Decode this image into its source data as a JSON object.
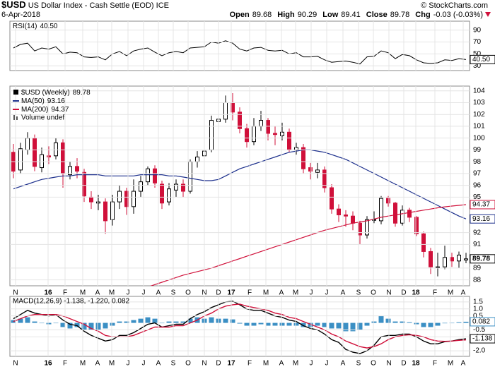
{
  "header": {
    "symbol": "$USD",
    "name": "US Dollar Index - Cash Settle (EOD) ICE",
    "credit": "© StockCharts.com",
    "date": "6-Apr-2018",
    "quote": [
      {
        "label": "Open",
        "value": 89.68
      },
      {
        "label": "High",
        "value": 90.29
      },
      {
        "label": "Low",
        "value": 89.41
      },
      {
        "label": "Close",
        "value": 89.78
      },
      {
        "label": "Chg",
        "value": "-0.03 (-0.03%)"
      }
    ]
  },
  "chart_data": [
    {
      "type": "line",
      "series": [
        {
          "name": "RSI(14)",
          "color": "#000000",
          "values": [
            60,
            66,
            68,
            55,
            60,
            58,
            62,
            50,
            53,
            52,
            45,
            44,
            45,
            40,
            50,
            54,
            47,
            55,
            58,
            60,
            53,
            47,
            52,
            54,
            52,
            60,
            61,
            62,
            70,
            68,
            72,
            68,
            58,
            55,
            60,
            61,
            56,
            55,
            56,
            50,
            52,
            45,
            45,
            46,
            40,
            36,
            37,
            38,
            36,
            33,
            45,
            46,
            55,
            52,
            42,
            49,
            47,
            40,
            35,
            34,
            35,
            40,
            39,
            42,
            40.5
          ],
          "value_labels": [
            null,
            null,
            null,
            null,
            null,
            null,
            null,
            null,
            null,
            null,
            null,
            null,
            null,
            null,
            null,
            null,
            null,
            null,
            null,
            null,
            null,
            null,
            null,
            null,
            null,
            null,
            null,
            null,
            null,
            null,
            null,
            null,
            null,
            null,
            null,
            null,
            null,
            null,
            null,
            null,
            null,
            null,
            null,
            null,
            null,
            null,
            null,
            null,
            null,
            null,
            null,
            null,
            null,
            null,
            null,
            null,
            null,
            null,
            null,
            null,
            null,
            null,
            null,
            null,
            "40.50"
          ]
        }
      ],
      "ylim": [
        22,
        105
      ],
      "yticks": [
        30,
        50,
        70,
        90
      ]
    },
    {
      "type": "candlestick",
      "name": "$USD (Weekly)",
      "up_color": "#000000",
      "down_color": "#d0103a",
      "open": [
        98.8,
        97.3,
        99.0,
        100.0,
        97.5,
        98.5,
        98.5,
        99.6,
        96.9,
        97.6,
        97.1,
        95.0,
        94.5,
        94.6,
        93.1,
        94.6,
        95.5,
        94.2,
        95.5,
        96.3,
        97.4,
        96.1,
        94.6,
        95.6,
        96.1,
        95.5,
        98.0,
        98.5,
        99.0,
        101.4,
        101.6,
        103.0,
        102.2,
        100.8,
        99.7,
        101.0,
        101.5,
        100.4,
        100.2,
        100.5,
        99.0,
        99.2,
        97.5,
        97.1,
        97.3,
        95.8,
        94.0,
        93.5,
        93.4,
        92.8,
        91.8,
        93.1,
        93.0,
        94.9,
        94.5,
        92.8,
        93.9,
        93.3,
        91.9,
        90.4,
        89.1,
        89.1,
        89.9,
        89.6,
        89.68
      ],
      "high": [
        99.5,
        99.6,
        100.5,
        100.3,
        99.2,
        99.3,
        100.0,
        99.9,
        98.0,
        98.3,
        97.4,
        95.5,
        95.2,
        94.9,
        95.2,
        96.0,
        95.8,
        96.5,
        96.8,
        97.6,
        97.7,
        96.4,
        96.2,
        96.5,
        96.5,
        98.2,
        98.9,
        99.3,
        101.9,
        102.3,
        103.6,
        103.8,
        102.6,
        101.2,
        101.7,
        102.3,
        101.7,
        101.0,
        101.3,
        100.8,
        99.6,
        99.5,
        97.9,
        97.9,
        97.6,
        96.1,
        94.4,
        93.9,
        93.8,
        93.0,
        93.4,
        93.8,
        95.1,
        95.1,
        94.6,
        94.3,
        94.1,
        93.4,
        92.1,
        90.7,
        90.3,
        90.9,
        90.3,
        90.4,
        90.29
      ],
      "low": [
        96.6,
        97.0,
        98.6,
        97.2,
        97.1,
        97.8,
        98.2,
        95.8,
        96.5,
        96.6,
        94.6,
        94.0,
        93.9,
        91.9,
        92.6,
        94.0,
        93.5,
        93.6,
        95.0,
        96.0,
        95.8,
        94.0,
        94.3,
        95.0,
        95.0,
        95.3,
        97.5,
        97.3,
        98.8,
        100.5,
        101.3,
        101.5,
        100.4,
        99.2,
        99.4,
        100.6,
        99.8,
        99.4,
        99.8,
        98.8,
        98.6,
        97.0,
        96.5,
        96.6,
        95.4,
        93.6,
        92.9,
        92.5,
        92.2,
        91.0,
        91.5,
        92.8,
        92.7,
        94.2,
        92.5,
        92.6,
        92.9,
        91.7,
        89.9,
        88.5,
        88.3,
        88.9,
        89.1,
        89.0,
        89.41
      ],
      "close": [
        97.2,
        99.1,
        100.0,
        97.6,
        98.6,
        98.4,
        99.6,
        97.0,
        97.6,
        97.2,
        95.1,
        94.6,
        94.6,
        93.0,
        94.6,
        95.5,
        94.2,
        95.5,
        96.3,
        97.4,
        96.2,
        94.5,
        95.7,
        96.1,
        95.5,
        98.0,
        98.4,
        98.9,
        101.5,
        101.6,
        103.0,
        102.2,
        100.8,
        99.7,
        101.0,
        101.5,
        100.4,
        100.3,
        100.5,
        99.0,
        99.2,
        97.4,
        97.2,
        97.3,
        95.8,
        94.0,
        93.5,
        93.4,
        92.8,
        91.8,
        93.1,
        93.1,
        94.9,
        94.5,
        92.8,
        93.9,
        93.3,
        91.9,
        90.4,
        89.1,
        89.1,
        89.9,
        89.6,
        90.1,
        89.78
      ],
      "overlays": [
        {
          "name": "MA(50)",
          "color": "#1c2f8c",
          "values": [
            95.7,
            95.9,
            96.1,
            96.3,
            96.5,
            96.6,
            96.7,
            96.8,
            96.8,
            96.9,
            96.9,
            96.9,
            96.9,
            96.8,
            96.8,
            96.8,
            96.8,
            96.8,
            96.9,
            96.9,
            96.9,
            96.9,
            96.8,
            96.8,
            96.7,
            96.6,
            96.5,
            96.4,
            96.4,
            96.5,
            96.8,
            97.1,
            97.4,
            97.6,
            97.8,
            98.0,
            98.2,
            98.4,
            98.6,
            98.8,
            98.9,
            99.0,
            99.0,
            98.9,
            98.8,
            98.6,
            98.4,
            98.2,
            97.9,
            97.6,
            97.3,
            97.0,
            96.7,
            96.4,
            96.1,
            95.8,
            95.5,
            95.2,
            94.9,
            94.6,
            94.3,
            94.0,
            93.7,
            93.4,
            93.16
          ]
        },
        {
          "name": "MA(200)",
          "color": "#d0103a",
          "values": [
            null,
            null,
            null,
            null,
            null,
            null,
            null,
            null,
            null,
            null,
            null,
            null,
            null,
            null,
            null,
            null,
            null,
            null,
            null,
            87.4,
            87.6,
            87.8,
            88.0,
            88.2,
            88.4,
            88.55,
            88.7,
            88.85,
            89.0,
            89.2,
            89.4,
            89.6,
            89.8,
            90.0,
            90.2,
            90.4,
            90.6,
            90.8,
            91.0,
            91.2,
            91.4,
            91.6,
            91.8,
            92.0,
            92.2,
            92.35,
            92.5,
            92.65,
            92.8,
            92.9,
            93.0,
            93.15,
            93.3,
            93.4,
            93.5,
            93.6,
            93.7,
            93.8,
            93.9,
            94.0,
            94.1,
            94.18,
            94.25,
            94.31,
            94.37
          ]
        }
      ],
      "volume_label": "Volume undef",
      "ylim": [
        87.5,
        104.4
      ],
      "yticks": [
        88,
        89,
        91,
        92,
        95,
        96,
        97,
        98,
        99,
        100,
        101,
        102,
        103,
        104
      ],
      "xlim": [
        -0.5,
        64.5
      ],
      "xticks": [
        {
          "value": 0.3,
          "label": "N"
        },
        {
          "value": 4.9,
          "label": "16"
        },
        {
          "value": 7.3,
          "label": "F"
        },
        {
          "value": 9.8,
          "label": "M"
        },
        {
          "value": 11.9,
          "label": "A"
        },
        {
          "value": 13.9,
          "label": "M"
        },
        {
          "value": 16.2,
          "label": "J"
        },
        {
          "value": 18.4,
          "label": "J"
        },
        {
          "value": 20.5,
          "label": "A"
        },
        {
          "value": 22.6,
          "label": "S"
        },
        {
          "value": 24.7,
          "label": "O"
        },
        {
          "value": 27.0,
          "label": "N"
        },
        {
          "value": 29.0,
          "label": "D"
        },
        {
          "value": 30.8,
          "label": "17"
        },
        {
          "value": 33.4,
          "label": "F"
        },
        {
          "value": 35.7,
          "label": "M"
        },
        {
          "value": 37.9,
          "label": "A"
        },
        {
          "value": 39.9,
          "label": "M"
        },
        {
          "value": 42.1,
          "label": "J"
        },
        {
          "value": 44.3,
          "label": "J"
        },
        {
          "value": 46.6,
          "label": "A"
        },
        {
          "value": 48.8,
          "label": "S"
        },
        {
          "value": 50.9,
          "label": "O"
        },
        {
          "value": 53.1,
          "label": "N"
        },
        {
          "value": 55.2,
          "label": "D"
        },
        {
          "value": 56.9,
          "label": "18"
        },
        {
          "value": 59.6,
          "label": "F"
        },
        {
          "value": 61.8,
          "label": "M"
        },
        {
          "value": 63.6,
          "label": "A"
        }
      ]
    },
    {
      "type": "macd",
      "label": "MACD(12,26,9) -1.138, -1.220, 0.082",
      "series": [
        {
          "color": "#000000",
          "values": [
            0.3,
            0.6,
            0.9,
            0.7,
            0.6,
            0.5,
            0.6,
            0.2,
            -0.1,
            -0.2,
            -0.6,
            -0.9,
            -1.1,
            -1.3,
            -1.2,
            -0.9,
            -0.9,
            -0.7,
            -0.4,
            -0.1,
            0.0,
            -0.3,
            -0.2,
            -0.1,
            -0.1,
            0.3,
            0.6,
            0.8,
            1.1,
            1.3,
            1.5,
            1.55,
            1.3,
            1.0,
            0.9,
            0.9,
            0.7,
            0.5,
            0.4,
            0.2,
            0.1,
            -0.2,
            -0.4,
            -0.5,
            -0.8,
            -1.2,
            -1.4,
            -1.9,
            -2.1,
            -2.2,
            -2.0,
            -1.6,
            -1.0,
            -0.9,
            -0.9,
            -0.8,
            -0.8,
            -1.0,
            -1.3,
            -1.5,
            -1.5,
            -1.35,
            -1.3,
            -1.2,
            -1.138
          ]
        },
        {
          "color": "#d0103a",
          "values": [
            0.1,
            0.3,
            0.5,
            0.6,
            0.6,
            0.6,
            0.6,
            0.5,
            0.3,
            0.1,
            -0.1,
            -0.4,
            -0.6,
            -0.9,
            -1.0,
            -1.0,
            -1.0,
            -0.9,
            -0.7,
            -0.5,
            -0.3,
            -0.3,
            -0.3,
            -0.2,
            -0.2,
            0.0,
            0.2,
            0.5,
            0.7,
            1.0,
            1.2,
            1.3,
            1.35,
            1.2,
            1.1,
            1.0,
            0.9,
            0.7,
            0.6,
            0.4,
            0.3,
            0.1,
            -0.1,
            -0.3,
            -0.5,
            -0.8,
            -1.0,
            -1.3,
            -1.5,
            -1.7,
            -1.8,
            -1.7,
            -1.5,
            -1.2,
            -1.0,
            -0.9,
            -0.85,
            -0.9,
            -1.0,
            -1.2,
            -1.3,
            -1.32,
            -1.3,
            -1.25,
            -1.22
          ],
          "value_labels": [
            null,
            null,
            null,
            null,
            null,
            null,
            null,
            null,
            null,
            null,
            null,
            null,
            null,
            null,
            null,
            null,
            null,
            null,
            null,
            null,
            null,
            null,
            null,
            null,
            null,
            null,
            null,
            null,
            null,
            null,
            null,
            null,
            null,
            null,
            null,
            null,
            null,
            null,
            null,
            null,
            null,
            null,
            null,
            null,
            null,
            null,
            null,
            null,
            null,
            null,
            null,
            null,
            null,
            null,
            null,
            null,
            null,
            null,
            null,
            null,
            null,
            null,
            null,
            null,
            "-1.220"
          ]
        }
      ],
      "histogram": {
        "color": "#3b8fc4",
        "values": [
          0.2,
          0.3,
          0.4,
          0.1,
          0.0,
          -0.1,
          0.0,
          -0.3,
          -0.4,
          -0.3,
          -0.5,
          -0.5,
          -0.5,
          -0.4,
          -0.2,
          0.1,
          0.1,
          0.2,
          0.3,
          0.4,
          0.3,
          0.0,
          0.1,
          0.1,
          0.1,
          0.3,
          0.4,
          0.3,
          0.4,
          0.3,
          0.3,
          0.25,
          -0.05,
          -0.2,
          -0.2,
          -0.1,
          -0.2,
          -0.2,
          -0.2,
          -0.2,
          -0.2,
          -0.3,
          -0.3,
          -0.2,
          -0.3,
          -0.4,
          -0.4,
          -0.6,
          -0.6,
          -0.5,
          -0.2,
          0.1,
          0.5,
          0.3,
          0.1,
          0.1,
          0.05,
          -0.1,
          -0.3,
          -0.3,
          -0.2,
          -0.03,
          0.0,
          0.05,
          0.082
        ]
      },
      "ylim": [
        -2.4,
        1.9
      ],
      "yticks": [
        1.5,
        {
          "value": 1,
          "label": "1.0"
        },
        0.5,
        -0.5,
        {
          "value": -1,
          "label": "-1.0"
        },
        {
          "value": -2,
          "label": "-2.0"
        }
      ],
      "xlim": [
        -0.5,
        64.5
      ],
      "xticks": [
        {
          "value": 0.3,
          "label": "N"
        },
        {
          "value": 4.9,
          "label": "16"
        },
        {
          "value": 7.3,
          "label": "F"
        },
        {
          "value": 9.8,
          "label": "M"
        },
        {
          "value": 11.9,
          "label": "A"
        },
        {
          "value": 13.9,
          "label": "M"
        },
        {
          "value": 16.2,
          "label": "J"
        },
        {
          "value": 18.4,
          "label": "J"
        },
        {
          "value": 20.5,
          "label": "A"
        },
        {
          "value": 22.6,
          "label": "S"
        },
        {
          "value": 24.7,
          "label": "O"
        },
        {
          "value": 27.0,
          "label": "N"
        },
        {
          "value": 29.0,
          "label": "D"
        },
        {
          "value": 30.8,
          "label": "17"
        },
        {
          "value": 33.4,
          "label": "F"
        },
        {
          "value": 35.7,
          "label": "M"
        },
        {
          "value": 37.9,
          "label": "A"
        },
        {
          "value": 39.9,
          "label": "M"
        },
        {
          "value": 42.1,
          "label": "J"
        },
        {
          "value": 44.3,
          "label": "J"
        },
        {
          "value": 46.6,
          "label": "A"
        },
        {
          "value": 48.8,
          "label": "S"
        },
        {
          "value": 50.9,
          "label": "O"
        },
        {
          "value": 53.1,
          "label": "N"
        },
        {
          "value": 55.2,
          "label": "D"
        },
        {
          "value": 56.9,
          "label": "18"
        },
        {
          "value": 59.6,
          "label": "F"
        },
        {
          "value": 61.8,
          "label": "M"
        },
        {
          "value": 63.6,
          "label": "A"
        }
      ]
    }
  ]
}
